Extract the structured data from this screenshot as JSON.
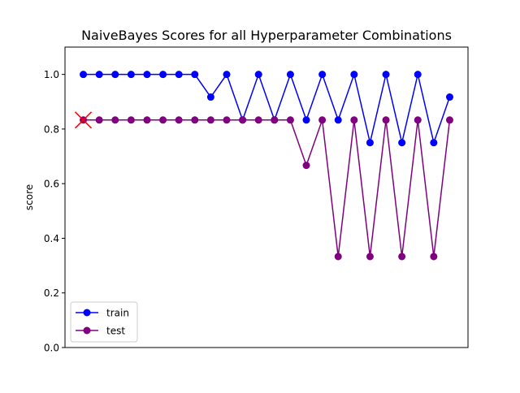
{
  "chart_data": {
    "type": "line",
    "title": "NaiveBayes Scores for all Hyperparameter Combinations",
    "xlabel": "",
    "ylabel": "score",
    "ylim": [
      0.0,
      1.1
    ],
    "yticks": [
      "0.0",
      "0.2",
      "0.4",
      "0.6",
      "0.8",
      "1.0"
    ],
    "x_ticks_shown": false,
    "grid": false,
    "legend_position": "lower-left",
    "x": [
      0,
      1,
      2,
      3,
      4,
      5,
      6,
      7,
      8,
      9,
      10,
      11,
      12,
      13,
      14,
      15,
      16,
      17,
      18,
      19,
      20,
      21,
      22,
      23
    ],
    "series": [
      {
        "name": "train",
        "color": "#0000ff",
        "values": [
          1.0,
          1.0,
          1.0,
          1.0,
          1.0,
          1.0,
          1.0,
          1.0,
          0.917,
          1.0,
          0.833,
          1.0,
          0.833,
          1.0,
          0.833,
          1.0,
          0.833,
          1.0,
          0.75,
          1.0,
          0.75,
          1.0,
          0.75,
          0.917
        ]
      },
      {
        "name": "test",
        "color": "#800080",
        "values": [
          0.833,
          0.833,
          0.833,
          0.833,
          0.833,
          0.833,
          0.833,
          0.833,
          0.833,
          0.833,
          0.833,
          0.833,
          0.833,
          0.833,
          0.667,
          0.833,
          0.333,
          0.833,
          0.333,
          0.833,
          0.333,
          0.833,
          0.333,
          0.833
        ]
      }
    ],
    "best_marker": {
      "x": 0,
      "y": 0.833,
      "color": "#ff0000",
      "symbol": "x"
    }
  }
}
